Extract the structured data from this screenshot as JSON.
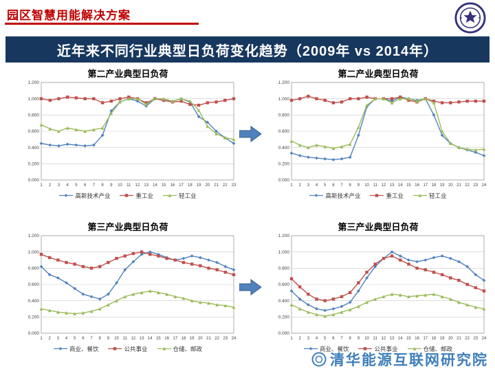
{
  "header": {
    "title": "园区智慧用能解决方案",
    "accent_color": "#C00000"
  },
  "banner": {
    "title": "近年来不同行业典型日负荷变化趋势（2009年 vs 2014年）",
    "bg_color": "#17375E",
    "text_color": "#FFFFFF"
  },
  "watermark": {
    "text": "清华能源互联网研究院",
    "color": "#2E74B5"
  },
  "icons": {
    "tsinghua_seal": "circular-university-seal",
    "transition_arrow": "→",
    "watermark_seal": "circular-blue-seal"
  },
  "palette": {
    "series_blue": "#4F81BD",
    "series_red": "#C0504D",
    "series_green": "#9BBB59",
    "arrow_blue": "#4F81BD"
  },
  "chart_data": [
    {
      "type": "line",
      "title": "第二产业典型日负荷",
      "x": [
        1,
        2,
        3,
        4,
        5,
        6,
        7,
        8,
        9,
        10,
        11,
        12,
        13,
        14,
        15,
        16,
        17,
        18,
        19,
        20,
        21,
        22,
        23
      ],
      "ylim": [
        0,
        1.2
      ],
      "yticks": [
        "1.200",
        "1.000",
        "0.800",
        "0.600",
        "0.400",
        "0.200",
        "0.000"
      ],
      "grid": true,
      "legend_position": "bottom",
      "series": [
        {
          "name": "高新技术产业",
          "color": "#4F81BD",
          "marker": "diamond",
          "values": [
            0.45,
            0.43,
            0.42,
            0.44,
            0.43,
            0.42,
            0.43,
            0.55,
            0.85,
            0.96,
            1.0,
            0.97,
            0.91,
            1.0,
            0.98,
            0.97,
            1.0,
            0.96,
            0.78,
            0.71,
            0.6,
            0.52,
            0.45
          ]
        },
        {
          "name": "重工业",
          "color": "#C0504D",
          "marker": "square",
          "values": [
            1.0,
            0.98,
            1.0,
            1.02,
            1.01,
            1.0,
            1.0,
            0.95,
            0.97,
            1.0,
            1.02,
            1.0,
            0.95,
            1.0,
            0.98,
            0.96,
            0.97,
            0.93,
            0.92,
            0.95,
            0.96,
            0.98,
            1.0
          ]
        },
        {
          "name": "轻工业",
          "color": "#9BBB59",
          "marker": "triangle",
          "values": [
            0.68,
            0.63,
            0.6,
            0.64,
            0.62,
            0.6,
            0.62,
            0.64,
            0.82,
            0.96,
            1.0,
            1.0,
            0.93,
            1.0,
            1.0,
            0.97,
            1.0,
            0.97,
            0.86,
            0.66,
            0.57,
            0.52,
            0.5
          ]
        }
      ]
    },
    {
      "type": "line",
      "title": "第二产业典型日负荷",
      "x": [
        1,
        2,
        3,
        4,
        5,
        6,
        7,
        8,
        9,
        10,
        11,
        12,
        13,
        14,
        15,
        16,
        17,
        18,
        19,
        20,
        21,
        22,
        23,
        24
      ],
      "ylim": [
        0,
        1.2
      ],
      "yticks": [
        "1.200",
        "1.000",
        "0.800",
        "0.600",
        "0.400",
        "0.200",
        "0.000"
      ],
      "grid": true,
      "legend_position": "bottom",
      "series": [
        {
          "name": "高新技术产业",
          "color": "#4F81BD",
          "marker": "diamond",
          "values": [
            0.33,
            0.3,
            0.28,
            0.27,
            0.26,
            0.25,
            0.26,
            0.28,
            0.55,
            0.9,
            1.0,
            1.0,
            0.97,
            1.02,
            1.0,
            0.98,
            1.0,
            0.8,
            0.55,
            0.45,
            0.4,
            0.37,
            0.34,
            0.3
          ]
        },
        {
          "name": "重工业",
          "color": "#C0504D",
          "marker": "square",
          "values": [
            0.98,
            1.0,
            1.03,
            1.0,
            0.98,
            0.95,
            0.96,
            1.0,
            1.0,
            1.02,
            1.0,
            1.0,
            1.0,
            1.02,
            0.98,
            0.96,
            1.0,
            0.97,
            0.95,
            0.95,
            0.96,
            0.97,
            0.97,
            0.97
          ]
        },
        {
          "name": "轻工业",
          "color": "#9BBB59",
          "marker": "triangle",
          "values": [
            0.48,
            0.43,
            0.4,
            0.43,
            0.41,
            0.39,
            0.41,
            0.44,
            0.65,
            0.92,
            1.0,
            1.0,
            0.95,
            1.0,
            1.0,
            0.97,
            1.0,
            0.95,
            0.6,
            0.45,
            0.4,
            0.38,
            0.37,
            0.38
          ]
        }
      ]
    },
    {
      "type": "line",
      "title": "第三产业典型日负荷",
      "x": [
        1,
        2,
        3,
        4,
        5,
        6,
        7,
        8,
        9,
        10,
        11,
        12,
        13,
        14,
        15,
        16,
        17,
        18,
        19,
        20,
        21,
        22,
        23,
        24
      ],
      "ylim": [
        0,
        1.2
      ],
      "yticks": [
        "1.200",
        "1.000",
        "0.800",
        "0.600",
        "0.400",
        "0.200",
        "0.000"
      ],
      "grid": true,
      "legend_position": "bottom",
      "series": [
        {
          "name": "商业、餐饮",
          "color": "#4F81BD",
          "marker": "diamond",
          "values": [
            0.82,
            0.72,
            0.68,
            0.62,
            0.55,
            0.48,
            0.45,
            0.42,
            0.48,
            0.62,
            0.78,
            0.88,
            0.97,
            1.0,
            0.97,
            0.93,
            0.9,
            0.92,
            0.95,
            0.93,
            0.9,
            0.87,
            0.82,
            0.78
          ]
        },
        {
          "name": "公共事业",
          "color": "#C0504D",
          "marker": "square",
          "values": [
            0.97,
            0.93,
            0.9,
            0.87,
            0.85,
            0.82,
            0.8,
            0.82,
            0.87,
            0.92,
            0.95,
            0.98,
            1.0,
            0.97,
            0.95,
            0.92,
            0.9,
            0.87,
            0.85,
            0.83,
            0.8,
            0.78,
            0.75,
            0.72
          ]
        },
        {
          "name": "仓储、邮政",
          "color": "#9BBB59",
          "marker": "triangle",
          "values": [
            0.3,
            0.28,
            0.26,
            0.25,
            0.24,
            0.25,
            0.27,
            0.3,
            0.35,
            0.4,
            0.45,
            0.48,
            0.5,
            0.52,
            0.5,
            0.48,
            0.45,
            0.43,
            0.4,
            0.38,
            0.37,
            0.35,
            0.34,
            0.32
          ]
        }
      ]
    },
    {
      "type": "line",
      "title": "第三产业典型日负荷",
      "x": [
        1,
        2,
        3,
        4,
        5,
        6,
        7,
        8,
        9,
        10,
        11,
        12,
        13,
        14,
        15,
        16,
        17,
        18,
        19,
        20,
        21,
        22,
        23,
        24
      ],
      "ylim": [
        0,
        1.2
      ],
      "yticks": [
        "1.200",
        "1.000",
        "0.800",
        "0.600",
        "0.400",
        "0.200",
        "0.000"
      ],
      "grid": true,
      "legend_position": "bottom",
      "series": [
        {
          "name": "商业、餐饮",
          "color": "#4F81BD",
          "marker": "diamond",
          "values": [
            0.52,
            0.42,
            0.35,
            0.3,
            0.28,
            0.3,
            0.33,
            0.38,
            0.52,
            0.68,
            0.82,
            0.92,
            1.0,
            0.95,
            0.9,
            0.88,
            0.9,
            0.93,
            0.95,
            0.92,
            0.88,
            0.82,
            0.72,
            0.65
          ]
        },
        {
          "name": "公共事业",
          "color": "#C0504D",
          "marker": "square",
          "values": [
            0.67,
            0.57,
            0.48,
            0.42,
            0.4,
            0.42,
            0.45,
            0.5,
            0.62,
            0.75,
            0.85,
            0.92,
            0.95,
            0.9,
            0.85,
            0.8,
            0.78,
            0.75,
            0.72,
            0.68,
            0.65,
            0.6,
            0.56,
            0.52
          ]
        },
        {
          "name": "仓储、邮政",
          "color": "#9BBB59",
          "marker": "triangle",
          "values": [
            0.35,
            0.3,
            0.26,
            0.23,
            0.21,
            0.23,
            0.26,
            0.29,
            0.33,
            0.38,
            0.42,
            0.45,
            0.48,
            0.47,
            0.45,
            0.46,
            0.47,
            0.48,
            0.45,
            0.42,
            0.38,
            0.35,
            0.32,
            0.3
          ]
        }
      ]
    }
  ]
}
